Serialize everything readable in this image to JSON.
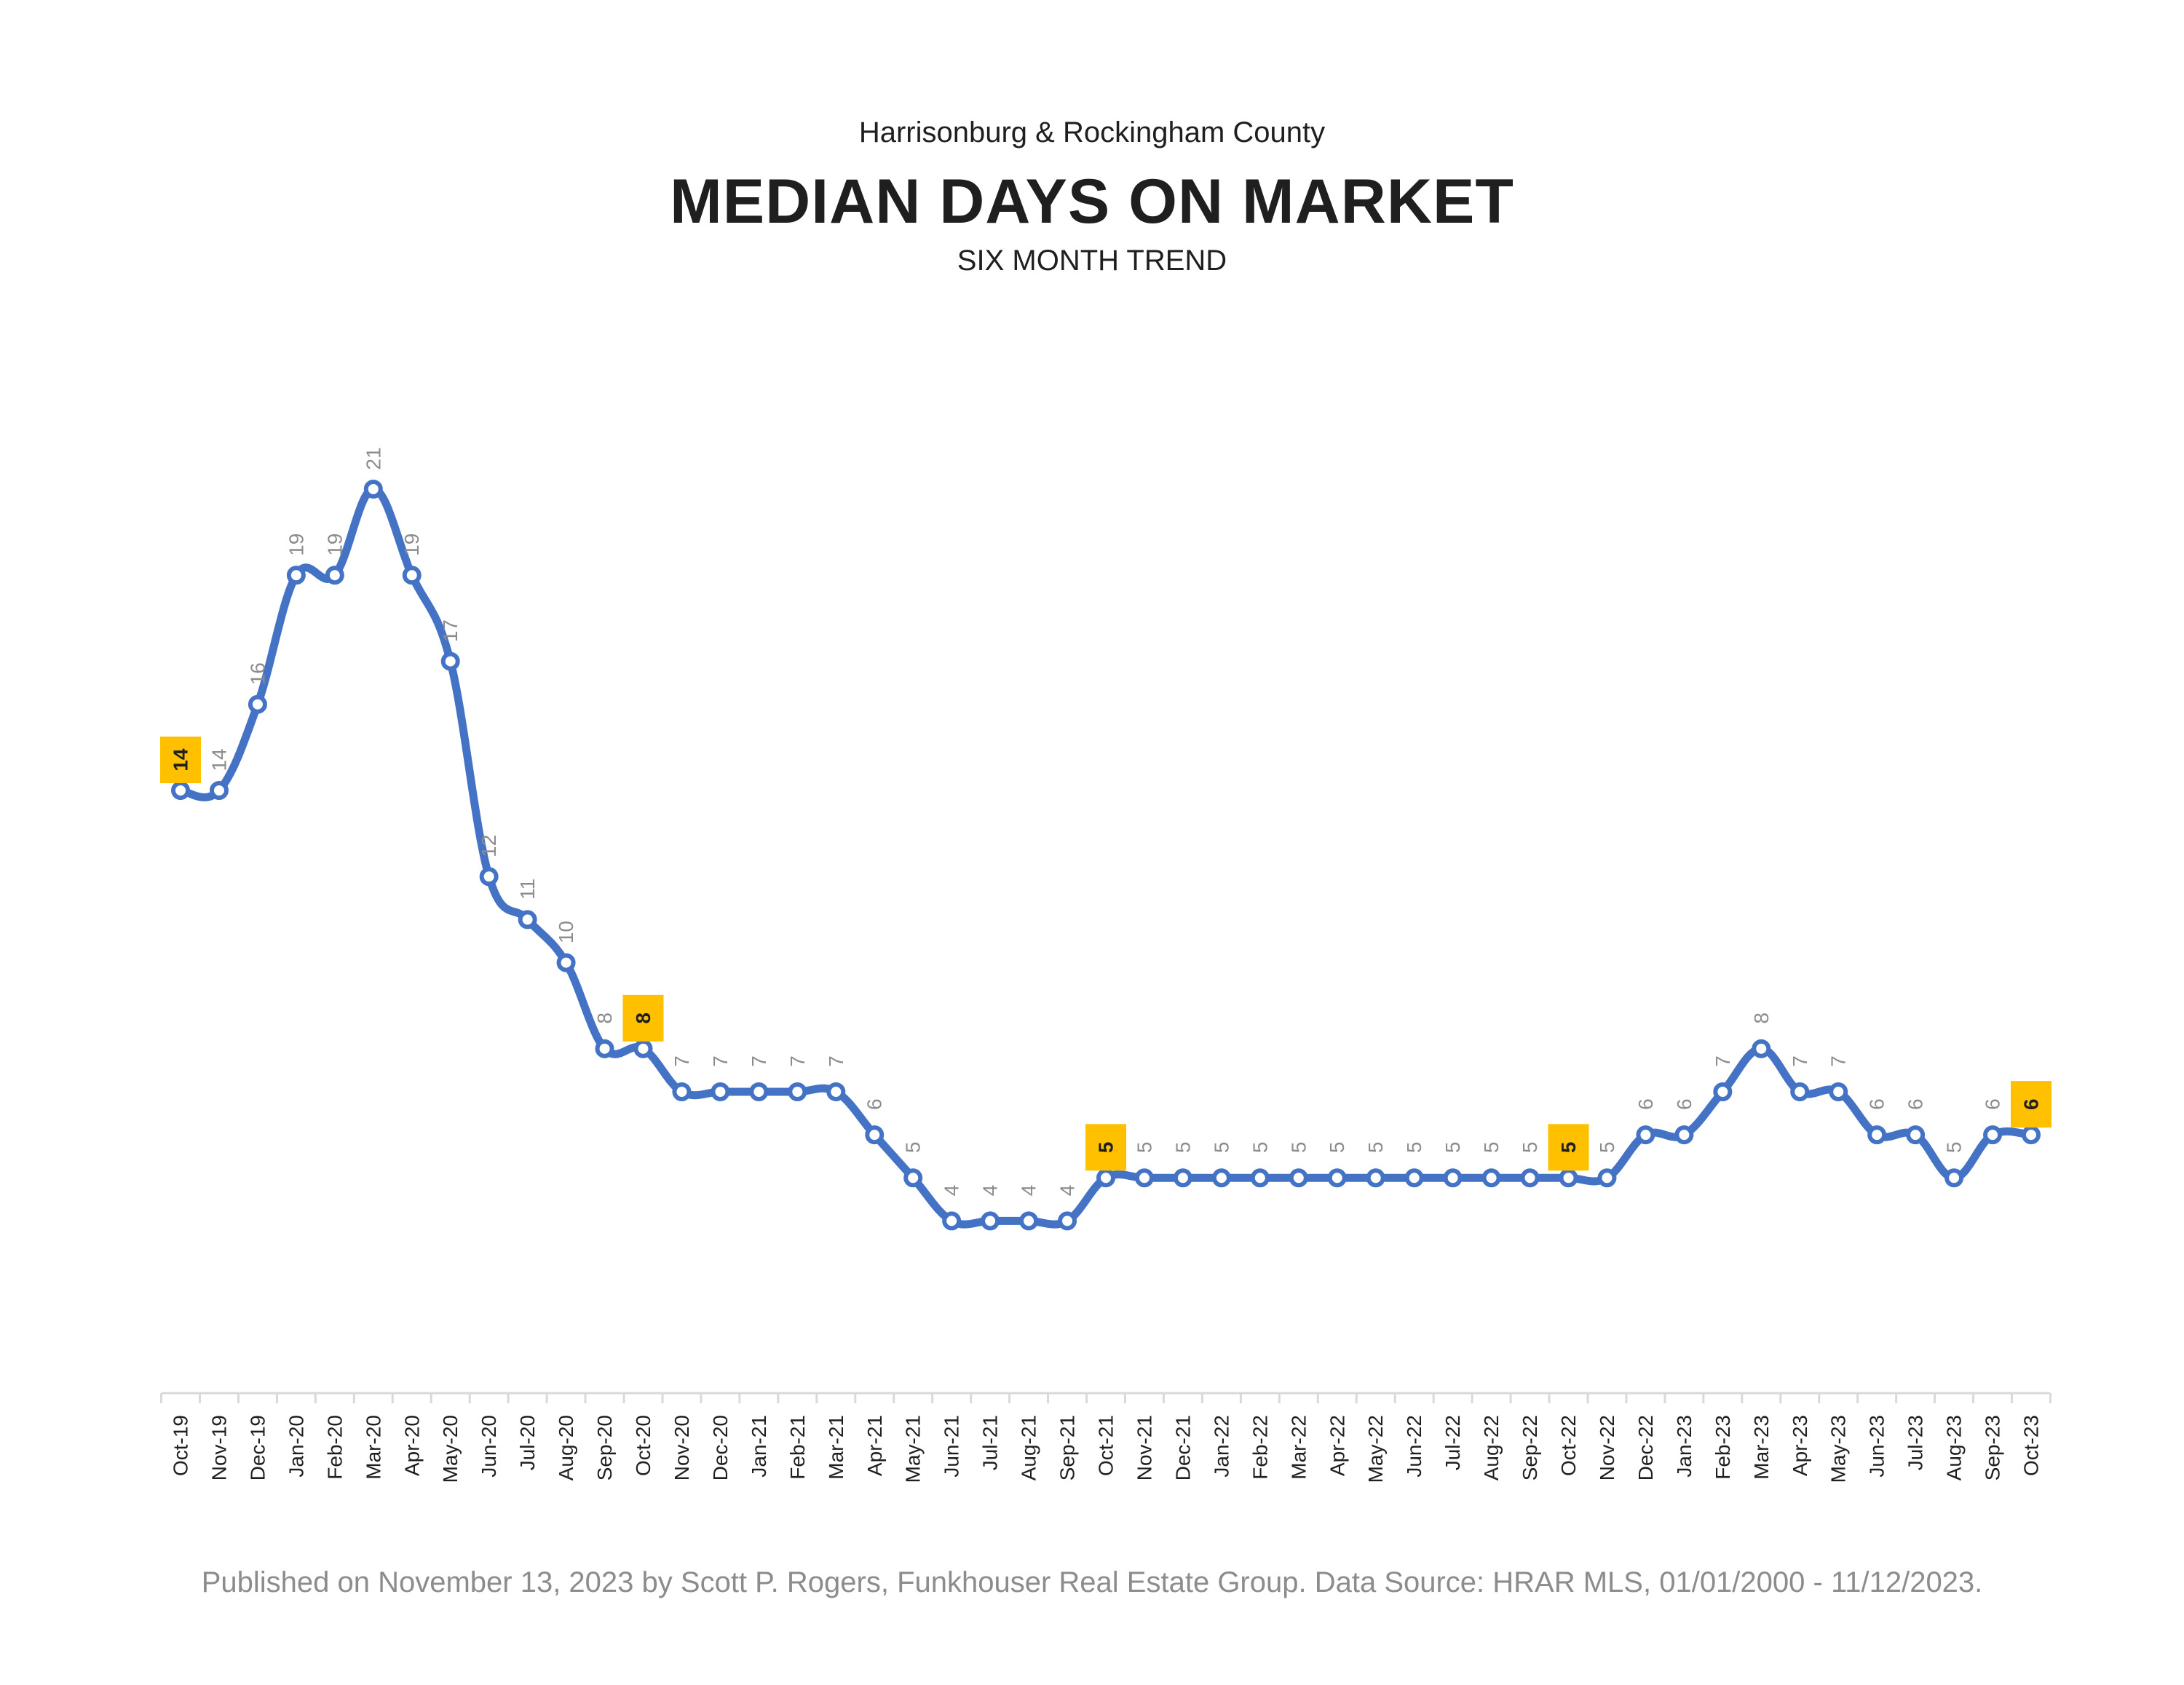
{
  "header": {
    "subtitle": "Harrisonburg & Rockingham County",
    "title": "MEDIAN DAYS ON MARKET",
    "trend_label": "SIX MONTH TREND"
  },
  "footer": {
    "text": "Published on November 13, 2023 by Scott P. Rogers, Funkhouser Real Estate Group. Data Source: HRAR MLS, 01/01/2000 - 11/12/2023."
  },
  "colors": {
    "line": "#4472C4",
    "highlight": "#FFC000",
    "label": "#8c8c8c",
    "axis": "#d9d9d9",
    "text": "#1f1f1f"
  },
  "chart_data": {
    "type": "line",
    "title": "MEDIAN DAYS ON MARKET",
    "subtitle": "SIX MONTH TREND",
    "xlabel": "",
    "ylabel": "",
    "grid": false,
    "legend": "none",
    "categories": [
      "Oct-19",
      "Nov-19",
      "Dec-19",
      "Jan-20",
      "Feb-20",
      "Mar-20",
      "Apr-20",
      "May-20",
      "Jun-20",
      "Jul-20",
      "Aug-20",
      "Sep-20",
      "Oct-20",
      "Nov-20",
      "Dec-20",
      "Jan-21",
      "Feb-21",
      "Mar-21",
      "Apr-21",
      "May-21",
      "Jun-21",
      "Jul-21",
      "Aug-21",
      "Sep-21",
      "Oct-21",
      "Nov-21",
      "Dec-21",
      "Jan-22",
      "Feb-22",
      "Mar-22",
      "Apr-22",
      "May-22",
      "Jun-22",
      "Jul-22",
      "Aug-22",
      "Sep-22",
      "Oct-22",
      "Nov-22",
      "Dec-22",
      "Jan-23",
      "Feb-23",
      "Mar-23",
      "Apr-23",
      "May-23",
      "Jun-23",
      "Jul-23",
      "Aug-23",
      "Sep-23",
      "Oct-23"
    ],
    "values": [
      14,
      14,
      16,
      19,
      19,
      21,
      19,
      17,
      12,
      11,
      10,
      8,
      8,
      7,
      7,
      7,
      7,
      7,
      6,
      5,
      4,
      4,
      4,
      4,
      5,
      5,
      5,
      5,
      5,
      5,
      5,
      5,
      5,
      5,
      5,
      5,
      5,
      5,
      6,
      6,
      7,
      8,
      7,
      7,
      6,
      6,
      5,
      6,
      6
    ],
    "highlighted": [
      "Oct-19",
      "Oct-20",
      "Oct-21",
      "Oct-22",
      "Oct-23"
    ],
    "ylim": [
      0,
      23
    ]
  }
}
